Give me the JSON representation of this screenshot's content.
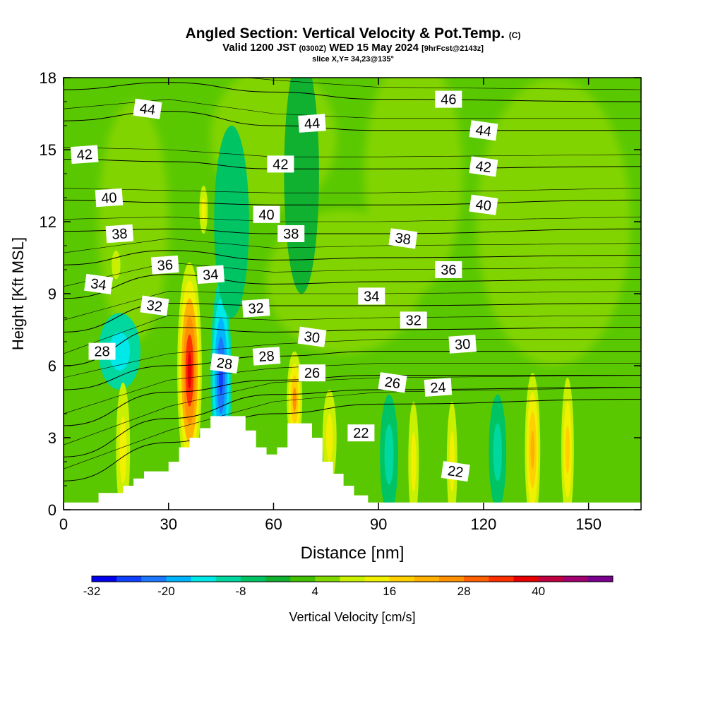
{
  "header": {
    "title": "Angled Section: Vertical Velocity & Pot.Temp.",
    "title_tag": "(C)",
    "valid_prefix": "Valid 1200 JST",
    "valid_utc": "(0300Z)",
    "valid_date": "WED 15 May 2024",
    "forecast": "[9hrFcst@2143z]",
    "slice": "slice X,Y= 34,23@135°"
  },
  "chart_data": {
    "type": "heatmap",
    "xlabel": "Distance [nm]",
    "ylabel": "Height [Kft MSL]",
    "xlim": [
      0,
      165
    ],
    "ylim": [
      0,
      18
    ],
    "xticks": [
      0,
      30,
      60,
      90,
      120,
      150
    ],
    "yticks": [
      0,
      3,
      6,
      9,
      12,
      15,
      18
    ],
    "terrain": [
      [
        0,
        0.3
      ],
      [
        10,
        0.3
      ],
      [
        10,
        0.7
      ],
      [
        17,
        0.7
      ],
      [
        17,
        1.0
      ],
      [
        20,
        1.0
      ],
      [
        20,
        1.3
      ],
      [
        23,
        1.3
      ],
      [
        23,
        1.6
      ],
      [
        30,
        1.6
      ],
      [
        30,
        2.0
      ],
      [
        33,
        2.0
      ],
      [
        33,
        2.6
      ],
      [
        36,
        2.6
      ],
      [
        36,
        3.0
      ],
      [
        39,
        3.0
      ],
      [
        39,
        3.4
      ],
      [
        42,
        3.4
      ],
      [
        42,
        3.9
      ],
      [
        52,
        3.9
      ],
      [
        52,
        3.3
      ],
      [
        55,
        3.3
      ],
      [
        55,
        2.6
      ],
      [
        58,
        2.6
      ],
      [
        58,
        2.3
      ],
      [
        61,
        2.3
      ],
      [
        61,
        2.6
      ],
      [
        64,
        2.6
      ],
      [
        64,
        3.6
      ],
      [
        71,
        3.6
      ],
      [
        71,
        3.0
      ],
      [
        74,
        3.0
      ],
      [
        74,
        2.0
      ],
      [
        77,
        2.0
      ],
      [
        77,
        1.5
      ],
      [
        80,
        1.5
      ],
      [
        80,
        1.0
      ],
      [
        83,
        1.0
      ],
      [
        83,
        0.6
      ],
      [
        87,
        0.6
      ],
      [
        87,
        0.3
      ],
      [
        165,
        0.3
      ]
    ],
    "velocity_cells": [
      {
        "x": 36,
        "y": 5.8,
        "w": 3.5,
        "h": 4.5,
        "value": 38
      },
      {
        "x": 45,
        "y": 5.6,
        "w": 3.0,
        "h": 4.0,
        "value": -28
      },
      {
        "x": 66,
        "y": 4.6,
        "w": 2.2,
        "h": 2.0,
        "value": 24
      },
      {
        "x": 16,
        "y": 6.6,
        "w": 6.0,
        "h": 1.6,
        "value": -14
      },
      {
        "x": 93,
        "y": 2.3,
        "w": 2.6,
        "h": 2.5,
        "value": -12
      },
      {
        "x": 134,
        "y": 2.5,
        "w": 2.2,
        "h": 3.2,
        "value": 22
      },
      {
        "x": 144,
        "y": 2.5,
        "w": 1.8,
        "h": 3.0,
        "value": 18
      },
      {
        "x": 111,
        "y": 2.0,
        "w": 1.5,
        "h": 2.5,
        "value": 12
      },
      {
        "x": 100,
        "y": 2.0,
        "w": 1.5,
        "h": 2.5,
        "value": 12
      },
      {
        "x": 17,
        "y": 2.5,
        "w": 2.0,
        "h": 2.8,
        "value": 12
      },
      {
        "x": 76,
        "y": 3.0,
        "w": 2.0,
        "h": 2.0,
        "value": 12
      },
      {
        "x": 124,
        "y": 2.4,
        "w": 2.5,
        "h": 2.4,
        "value": -10
      },
      {
        "x": 48,
        "y": 12.0,
        "w": 5.0,
        "h": 4.0,
        "value": -6
      },
      {
        "x": 68,
        "y": 14.0,
        "w": 5.0,
        "h": 5.0,
        "value": -4
      },
      {
        "x": 40,
        "y": 12.5,
        "w": 1.2,
        "h": 1.0,
        "value": 12
      },
      {
        "x": 15,
        "y": 10.2,
        "w": 2.5,
        "h": 1.2,
        "value": 10
      }
    ],
    "isentropes": [
      {
        "label": "22",
        "x": [
          0,
          30,
          60,
          90,
          165
        ],
        "y": [
          1.2,
          2.8,
          4.0,
          4.4,
          4.6
        ]
      },
      {
        "label": "24",
        "x": [
          0,
          30,
          60,
          90,
          165
        ],
        "y": [
          2.2,
          3.8,
          4.8,
          5.0,
          5.1
        ]
      },
      {
        "label": "26",
        "x": [
          0,
          30,
          60,
          90,
          165
        ],
        "y": [
          3.5,
          4.9,
          5.4,
          5.6,
          5.6
        ]
      },
      {
        "label": "28",
        "x": [
          0,
          30,
          60,
          90,
          165
        ],
        "y": [
          5.0,
          6.0,
          6.4,
          6.6,
          6.6
        ]
      },
      {
        "label": "30",
        "x": [
          0,
          30,
          60,
          90,
          165
        ],
        "y": [
          6.0,
          7.6,
          7.4,
          7.5,
          7.6
        ]
      },
      {
        "label": "32",
        "x": [
          0,
          30,
          60,
          90,
          165
        ],
        "y": [
          7.4,
          8.6,
          8.5,
          8.5,
          8.6
        ]
      },
      {
        "label": "34",
        "x": [
          0,
          30,
          60,
          90,
          165
        ],
        "y": [
          8.8,
          9.8,
          9.4,
          9.5,
          9.6
        ]
      },
      {
        "label": "36",
        "x": [
          0,
          30,
          60,
          90,
          165
        ],
        "y": [
          10.2,
          10.8,
          10.4,
          10.5,
          10.6
        ]
      },
      {
        "label": "38",
        "x": [
          0,
          30,
          60,
          90,
          165
        ],
        "y": [
          11.6,
          11.7,
          11.5,
          11.5,
          11.7
        ]
      },
      {
        "label": "40",
        "x": [
          0,
          30,
          60,
          90,
          165
        ],
        "y": [
          12.9,
          12.8,
          12.7,
          12.7,
          12.9
        ]
      },
      {
        "label": "42",
        "x": [
          0,
          30,
          60,
          90,
          165
        ],
        "y": [
          14.6,
          14.5,
          14.2,
          14.2,
          14.3
        ]
      },
      {
        "label": "44",
        "x": [
          0,
          30,
          60,
          90,
          165
        ],
        "y": [
          16.2,
          16.6,
          16.0,
          15.8,
          15.8
        ]
      },
      {
        "label": "46",
        "x": [
          0,
          30,
          60,
          90,
          165
        ],
        "y": [
          17.5,
          17.8,
          17.4,
          17.1,
          17.0
        ]
      }
    ],
    "contour_labels": [
      {
        "text": "44",
        "x": 24,
        "y": 16.7
      },
      {
        "text": "44",
        "x": 71,
        "y": 16.1
      },
      {
        "text": "46",
        "x": 110,
        "y": 17.1
      },
      {
        "text": "44",
        "x": 120,
        "y": 15.8
      },
      {
        "text": "42",
        "x": 6,
        "y": 14.8
      },
      {
        "text": "42",
        "x": 62,
        "y": 14.4
      },
      {
        "text": "42",
        "x": 120,
        "y": 14.3
      },
      {
        "text": "40",
        "x": 13,
        "y": 13.0
      },
      {
        "text": "40",
        "x": 58,
        "y": 12.3
      },
      {
        "text": "40",
        "x": 120,
        "y": 12.7
      },
      {
        "text": "38",
        "x": 16,
        "y": 11.5
      },
      {
        "text": "38",
        "x": 65,
        "y": 11.5
      },
      {
        "text": "38",
        "x": 97,
        "y": 11.3
      },
      {
        "text": "36",
        "x": 29,
        "y": 10.2
      },
      {
        "text": "36",
        "x": 110,
        "y": 10.0
      },
      {
        "text": "34",
        "x": 10,
        "y": 9.4
      },
      {
        "text": "34",
        "x": 42,
        "y": 9.8
      },
      {
        "text": "34",
        "x": 88,
        "y": 8.9
      },
      {
        "text": "32",
        "x": 26,
        "y": 8.5
      },
      {
        "text": "32",
        "x": 55,
        "y": 8.4
      },
      {
        "text": "32",
        "x": 100,
        "y": 7.9
      },
      {
        "text": "30",
        "x": 71,
        "y": 7.2
      },
      {
        "text": "30",
        "x": 114,
        "y": 6.9
      },
      {
        "text": "28",
        "x": 11,
        "y": 6.6
      },
      {
        "text": "28",
        "x": 46,
        "y": 6.1
      },
      {
        "text": "28",
        "x": 58,
        "y": 6.4
      },
      {
        "text": "26",
        "x": 71,
        "y": 5.7
      },
      {
        "text": "26",
        "x": 94,
        "y": 5.3
      },
      {
        "text": "24",
        "x": 107,
        "y": 5.1
      },
      {
        "text": "22",
        "x": 85,
        "y": 3.2
      },
      {
        "text": "22",
        "x": 112,
        "y": 1.6
      }
    ],
    "colorbar": {
      "label": "Vertical Velocity [cm/s]",
      "tick_labels": [
        "-32",
        "-20",
        "-8",
        "4",
        "16",
        "28",
        "40"
      ],
      "min": -32,
      "step": 4,
      "colors": [
        "#0000ee",
        "#1040ff",
        "#1e78ff",
        "#00b4ff",
        "#00e8e8",
        "#00d8a0",
        "#00c464",
        "#10b030",
        "#40c000",
        "#80d800",
        "#c8f000",
        "#f0f000",
        "#ffd000",
        "#ffb000",
        "#ff9000",
        "#ff6000",
        "#ff3000",
        "#e80000",
        "#c00040",
        "#a00070",
        "#7a0090"
      ]
    },
    "velocity_colors": {
      "default_green": "#5ac800",
      "light_green": "#82d400"
    }
  }
}
